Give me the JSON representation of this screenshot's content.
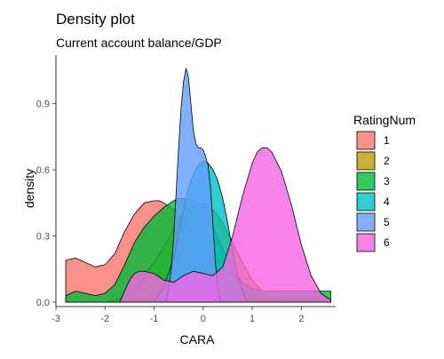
{
  "chart_data": {
    "type": "area",
    "title": "Density plot",
    "subtitle": "Current account balance/GDP",
    "xlabel": "CARA",
    "ylabel": "density",
    "xlim": [
      -3,
      2.7
    ],
    "ylim": [
      -0.02,
      1.12
    ],
    "xticks": [
      -3,
      -2,
      -1,
      0,
      1,
      2
    ],
    "yticks": [
      0.0,
      0.3,
      0.6,
      0.9
    ],
    "ytick_labels": [
      "0.0",
      "0.3",
      "0.6",
      "0.9"
    ],
    "grid": false,
    "legend": {
      "title": "RatingNum",
      "position": "right"
    },
    "series": [
      {
        "name": "1",
        "color": "#F8766D",
        "points": [
          [
            -2.8,
            0.19
          ],
          [
            -2.6,
            0.2
          ],
          [
            -2.4,
            0.18
          ],
          [
            -2.2,
            0.16
          ],
          [
            -2.0,
            0.17
          ],
          [
            -1.8,
            0.22
          ],
          [
            -1.6,
            0.32
          ],
          [
            -1.4,
            0.4
          ],
          [
            -1.2,
            0.45
          ],
          [
            -1.0,
            0.46
          ],
          [
            -0.9,
            0.46
          ],
          [
            -0.8,
            0.45
          ],
          [
            -0.6,
            0.42
          ],
          [
            -0.4,
            0.37
          ],
          [
            -0.2,
            0.31
          ],
          [
            0.0,
            0.24
          ],
          [
            0.2,
            0.18
          ],
          [
            0.4,
            0.13
          ],
          [
            0.6,
            0.09
          ],
          [
            0.8,
            0.06
          ],
          [
            1.0,
            0.04
          ],
          [
            1.2,
            0.03
          ],
          [
            1.5,
            0.02
          ],
          [
            2.0,
            0.02
          ],
          [
            2.5,
            0.02
          ]
        ]
      },
      {
        "name": "2",
        "color": "#B79F00",
        "points": [
          [
            -2.8,
            0.0
          ],
          [
            -2.0,
            0.0
          ],
          [
            -1.6,
            0.02
          ],
          [
            -1.4,
            0.06
          ],
          [
            -1.2,
            0.12
          ],
          [
            -1.0,
            0.18
          ],
          [
            -0.8,
            0.25
          ],
          [
            -0.6,
            0.33
          ],
          [
            -0.4,
            0.4
          ],
          [
            -0.2,
            0.44
          ],
          [
            0.0,
            0.45
          ],
          [
            0.2,
            0.42
          ],
          [
            0.4,
            0.36
          ],
          [
            0.6,
            0.27
          ],
          [
            0.8,
            0.18
          ],
          [
            1.0,
            0.1
          ],
          [
            1.2,
            0.05
          ],
          [
            1.4,
            0.02
          ],
          [
            1.6,
            0.0
          ],
          [
            2.6,
            0.0
          ]
        ]
      },
      {
        "name": "3",
        "color": "#00BA38",
        "points": [
          [
            -2.8,
            0.03
          ],
          [
            -2.6,
            0.05
          ],
          [
            -2.4,
            0.04
          ],
          [
            -2.2,
            0.03
          ],
          [
            -2.0,
            0.04
          ],
          [
            -1.8,
            0.08
          ],
          [
            -1.6,
            0.17
          ],
          [
            -1.4,
            0.27
          ],
          [
            -1.2,
            0.34
          ],
          [
            -1.0,
            0.39
          ],
          [
            -0.8,
            0.43
          ],
          [
            -0.6,
            0.46
          ],
          [
            -0.5,
            0.47
          ],
          [
            -0.4,
            0.47
          ],
          [
            -0.2,
            0.46
          ],
          [
            0.0,
            0.42
          ],
          [
            0.2,
            0.34
          ],
          [
            0.4,
            0.24
          ],
          [
            0.6,
            0.15
          ],
          [
            0.8,
            0.09
          ],
          [
            1.0,
            0.06
          ],
          [
            1.3,
            0.05
          ],
          [
            1.6,
            0.05
          ],
          [
            2.0,
            0.05
          ],
          [
            2.3,
            0.05
          ],
          [
            2.6,
            0.05
          ]
        ]
      },
      {
        "name": "4",
        "color": "#00BFC4",
        "points": [
          [
            -1.0,
            0.0
          ],
          [
            -0.8,
            0.07
          ],
          [
            -0.6,
            0.2
          ],
          [
            -0.5,
            0.3
          ],
          [
            -0.4,
            0.42
          ],
          [
            -0.3,
            0.52
          ],
          [
            -0.2,
            0.58
          ],
          [
            -0.1,
            0.62
          ],
          [
            0.0,
            0.64
          ],
          [
            0.1,
            0.63
          ],
          [
            0.2,
            0.6
          ],
          [
            0.3,
            0.55
          ],
          [
            0.4,
            0.47
          ],
          [
            0.5,
            0.36
          ],
          [
            0.6,
            0.23
          ],
          [
            0.7,
            0.12
          ],
          [
            0.8,
            0.05
          ],
          [
            0.9,
            0.0
          ]
        ]
      },
      {
        "name": "5",
        "color": "#619CFF",
        "points": [
          [
            -0.75,
            0.0
          ],
          [
            -0.65,
            0.15
          ],
          [
            -0.6,
            0.3
          ],
          [
            -0.55,
            0.5
          ],
          [
            -0.5,
            0.7
          ],
          [
            -0.45,
            0.88
          ],
          [
            -0.4,
            1.0
          ],
          [
            -0.35,
            1.06
          ],
          [
            -0.3,
            1.02
          ],
          [
            -0.25,
            0.9
          ],
          [
            -0.2,
            0.78
          ],
          [
            -0.15,
            0.72
          ],
          [
            -0.1,
            0.7
          ],
          [
            -0.05,
            0.7
          ],
          [
            0.0,
            0.69
          ],
          [
            0.05,
            0.66
          ],
          [
            0.1,
            0.62
          ],
          [
            0.15,
            0.52
          ],
          [
            0.2,
            0.35
          ],
          [
            0.25,
            0.18
          ],
          [
            0.3,
            0.06
          ],
          [
            0.35,
            0.0
          ]
        ]
      },
      {
        "name": "6",
        "color": "#F564E3",
        "points": [
          [
            -1.7,
            0.0
          ],
          [
            -1.6,
            0.05
          ],
          [
            -1.5,
            0.1
          ],
          [
            -1.4,
            0.13
          ],
          [
            -1.3,
            0.14
          ],
          [
            -1.2,
            0.14
          ],
          [
            -1.0,
            0.13
          ],
          [
            -0.8,
            0.1
          ],
          [
            -0.6,
            0.09
          ],
          [
            -0.4,
            0.12
          ],
          [
            -0.2,
            0.14
          ],
          [
            0.0,
            0.13
          ],
          [
            0.2,
            0.12
          ],
          [
            0.4,
            0.16
          ],
          [
            0.6,
            0.3
          ],
          [
            0.8,
            0.48
          ],
          [
            1.0,
            0.63
          ],
          [
            1.1,
            0.68
          ],
          [
            1.2,
            0.7
          ],
          [
            1.3,
            0.7
          ],
          [
            1.4,
            0.68
          ],
          [
            1.6,
            0.59
          ],
          [
            1.8,
            0.44
          ],
          [
            2.0,
            0.26
          ],
          [
            2.2,
            0.12
          ],
          [
            2.4,
            0.04
          ],
          [
            2.6,
            0.01
          ]
        ]
      }
    ]
  }
}
